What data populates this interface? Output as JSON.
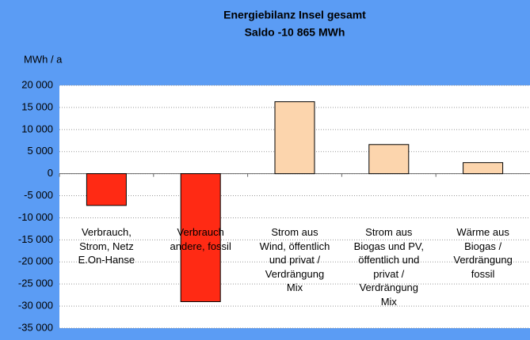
{
  "chart_data": {
    "type": "bar",
    "title": "Energiebilanz Insel gesamt",
    "subtitle": "Saldo -10 865 MWh",
    "y_label": "MWh / a",
    "categories": [
      "Verbrauch,\nStrom, Netz\nE.On-Hanse",
      "Verbrauch\nandere, fossil",
      "Strom aus\nWind, öffentlich\nund privat /\nVerdrängung\nMix",
      "Strom aus\nBiogas und PV,\nöffentlich und\nprivat /\nVerdrängung\nMix",
      "Wärme aus\nBiogas /\nVerdrängung\nfossil"
    ],
    "values": [
      -7200,
      -29000,
      16300,
      6600,
      2500
    ],
    "colors": [
      "#ff2a14",
      "#ff2a14",
      "#fcd5ad",
      "#fcd5ad",
      "#fcd5ad"
    ],
    "ylim": [
      -35000,
      20000
    ],
    "yticks": [
      {
        "value": 20000,
        "label": "20 000"
      },
      {
        "value": 15000,
        "label": "15 000"
      },
      {
        "value": 10000,
        "label": "10 000"
      },
      {
        "value": 5000,
        "label": "5 000"
      },
      0,
      {
        "value": -5000,
        "label": "-5 000"
      },
      {
        "value": -10000,
        "label": "-10 000"
      },
      {
        "value": -15000,
        "label": "-15 000"
      },
      {
        "value": -20000,
        "label": "-20 000"
      },
      {
        "value": -25000,
        "label": "-25 000"
      },
      {
        "value": -30000,
        "label": "-30 000"
      },
      {
        "value": -35000,
        "label": "-35 000"
      }
    ],
    "grid": true
  }
}
